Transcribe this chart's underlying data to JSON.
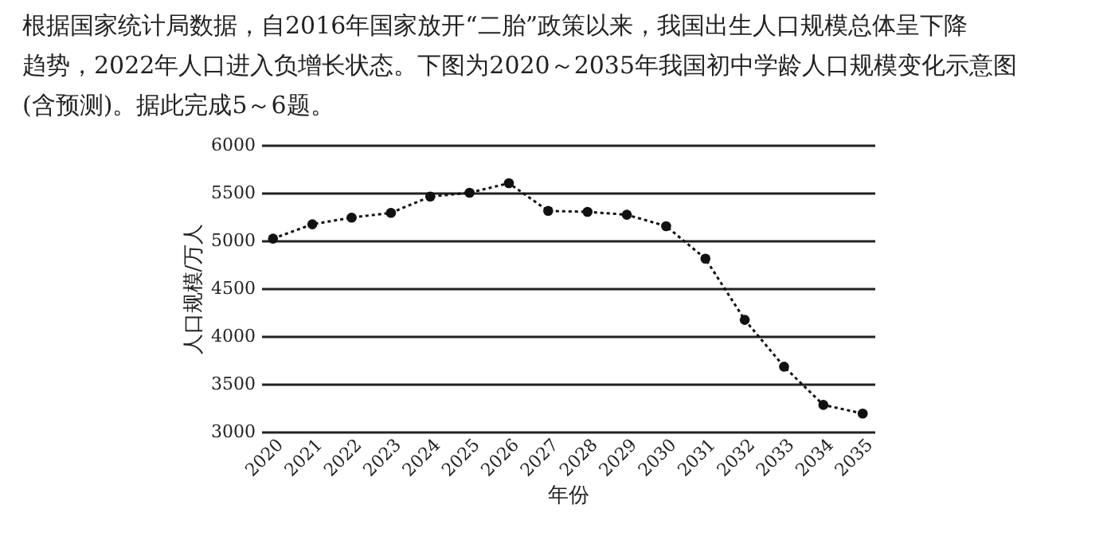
{
  "chart_data": {
    "type": "line",
    "annotations": [
      "根据国家统计局数据，自2016年国家放开“二胎”政策以来，我国出生人口规模总体呈下降",
      "趋势，2022年人口进入负增长状态。下图为2020～2035年我国初中学龄人口规模变化示意图",
      "(含预测)。据此完成5～6题。"
    ],
    "xlabel": "年份",
    "ylabel": "人口规模/万人",
    "categories": [
      "2020",
      "2021",
      "2022",
      "2023",
      "2024",
      "2025",
      "2026",
      "2027",
      "2028",
      "2029",
      "2030",
      "2031",
      "2032",
      "2033",
      "2034",
      "2035"
    ],
    "series": [
      {
        "color": "#111111",
        "values": [
          5020,
          5170,
          5240,
          5290,
          5460,
          5500,
          5600,
          5310,
          5300,
          5270,
          5150,
          4810,
          4170,
          3680,
          3280,
          3190
        ]
      }
    ],
    "ylim": [
      3000,
      6000
    ],
    "yticks": [
      3000,
      3500,
      4000,
      4500,
      5000,
      5500,
      6000
    ],
    "grid": "y",
    "legend": false,
    "marker": "circle",
    "line_style": "dotted"
  }
}
